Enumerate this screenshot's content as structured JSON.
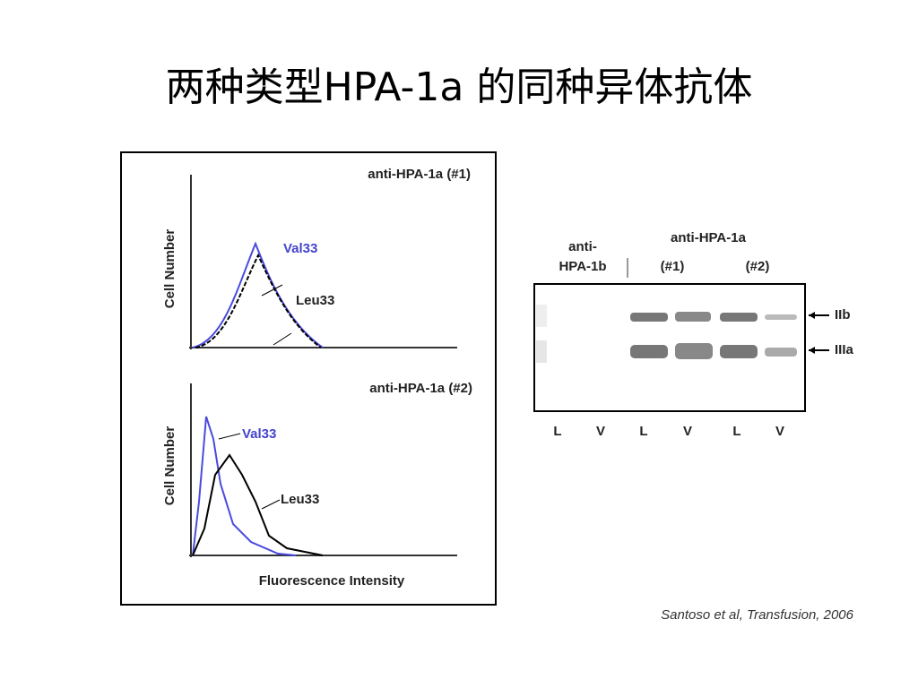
{
  "title": "两种类型HPA-1a 的同种异体抗体",
  "histograms": [
    {
      "title": "anti-HPA-1a (#1)",
      "y_label": "Cell Number",
      "curve_labels": [
        "Val33",
        "Leu33"
      ]
    },
    {
      "title": "anti-HPA-1a (#2)",
      "y_label": "Cell Number",
      "curve_labels": [
        "Val33",
        "Leu33"
      ]
    }
  ],
  "x_label": "Fluorescence Intensity",
  "blot": {
    "header": [
      "anti-",
      "HPA-1b",
      "anti-HPA-1a",
      "(#1)",
      "(#2)"
    ],
    "bands": [
      "IIb",
      "IIIa"
    ],
    "lanes": [
      "L",
      "V",
      "L",
      "V",
      "L",
      "V"
    ]
  },
  "citation": "Santoso et al, Transfusion, 2006"
}
